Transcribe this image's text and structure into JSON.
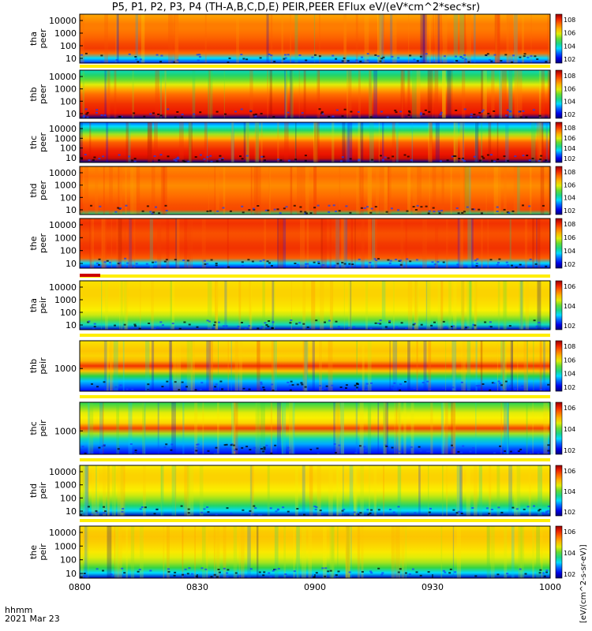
{
  "title": "P5, P1, P2, P3, P4 (TH-A,B,C,D,E) PEIR,PEER EFlux eV/(eV*cm^2*sec*sr)",
  "footer": {
    "label": "hhmm",
    "date": "2021 Mar 23"
  },
  "colorbar_unit": "[eV/(cm^2-s-sr-eV)]",
  "colors": {
    "low": "#000080",
    "mid": "#22cc44",
    "high": "#ffee00",
    "max": "#cc0000"
  },
  "chart_data": [
    {
      "type": "heatmap",
      "probe": "tha",
      "species": "peer",
      "ylabel": [
        "tha",
        "peer"
      ],
      "yticks": [
        "10000",
        "1000",
        "100",
        "10"
      ],
      "colorbar_ticks": [
        "10^8",
        "10^6",
        "10^4",
        "10^2"
      ],
      "profile": [
        0.15,
        0.3,
        0.8,
        0.87,
        0.85,
        0.82,
        0.8,
        0.78,
        0.78,
        0.75,
        0.72
      ]
    },
    {
      "type": "heatmap",
      "probe": "thb",
      "species": "peer",
      "ylabel": [
        "thb",
        "peer"
      ],
      "yticks": [
        "10000",
        "1000",
        "100",
        "10"
      ],
      "colorbar_ticks": [
        "10^8",
        "10^6",
        "10^4",
        "10^2"
      ],
      "profile": [
        0.02,
        0.92,
        0.9,
        0.88,
        0.84,
        0.8,
        0.72,
        0.6,
        0.5,
        0.42,
        0.35
      ]
    },
    {
      "type": "heatmap",
      "probe": "thc",
      "species": "peer",
      "ylabel": [
        "thc",
        "peer"
      ],
      "yticks": [
        "10000",
        "1000",
        "100",
        "10"
      ],
      "colorbar_ticks": [
        "10^8",
        "10^6",
        "10^4",
        "10^2"
      ],
      "profile": [
        0.02,
        0.95,
        0.92,
        0.9,
        0.86,
        0.82,
        0.7,
        0.55,
        0.42,
        0.3,
        0.2
      ]
    },
    {
      "type": "heatmap",
      "probe": "thd",
      "species": "peer",
      "ylabel": [
        "thd",
        "peer"
      ],
      "yticks": [
        "10000",
        "1000",
        "100",
        "10"
      ],
      "colorbar_ticks": [
        "10^8",
        "10^6",
        "10^4",
        "10^2"
      ],
      "profile": [
        0.4,
        0.85,
        0.84,
        0.82,
        0.8,
        0.78,
        0.76,
        0.78,
        0.8,
        0.78,
        0.76
      ]
    },
    {
      "type": "heatmap",
      "probe": "the",
      "species": "peer",
      "ylabel": [
        "the",
        "peer"
      ],
      "yticks": [
        "10000",
        "1000",
        "100",
        "10"
      ],
      "colorbar_ticks": [
        "10^8",
        "10^6",
        "10^4",
        "10^2"
      ],
      "profile": [
        0.1,
        0.3,
        0.82,
        0.86,
        0.88,
        0.87,
        0.85,
        0.84,
        0.86,
        0.88,
        0.86
      ]
    },
    {
      "type": "heatmap",
      "probe": "tha",
      "species": "peir",
      "ylabel": [
        "tha",
        "peir"
      ],
      "yticks": [
        "10000",
        "1000",
        "100",
        "10"
      ],
      "colorbar_ticks": [
        "10^6",
        "10^4",
        "10^2"
      ],
      "profile": [
        0.08,
        0.35,
        0.5,
        0.58,
        0.62,
        0.64,
        0.65,
        0.66,
        0.66,
        0.65,
        0.64
      ]
    },
    {
      "type": "heatmap",
      "probe": "thb",
      "species": "peir",
      "ylabel": [
        "thb",
        "peir"
      ],
      "yticks": [
        "1000"
      ],
      "colorbar_ticks": [
        "10^8",
        "10^6",
        "10^4",
        "10^2"
      ],
      "profile": [
        0.12,
        0.2,
        0.28,
        0.45,
        0.68,
        0.88,
        0.7,
        0.66,
        0.68,
        0.66,
        0.64
      ]
    },
    {
      "type": "heatmap",
      "probe": "thc",
      "species": "peir",
      "ylabel": [
        "thc",
        "peir"
      ],
      "yticks": [
        "1000"
      ],
      "colorbar_ticks": [
        "10^6",
        "10^4",
        "10^2"
      ],
      "profile": [
        0.12,
        0.18,
        0.26,
        0.36,
        0.55,
        0.86,
        0.66,
        0.62,
        0.6,
        0.52,
        0.44
      ]
    },
    {
      "type": "heatmap",
      "probe": "thd",
      "species": "peir",
      "ylabel": [
        "thd",
        "peir"
      ],
      "yticks": [
        "10000",
        "1000",
        "100",
        "10"
      ],
      "colorbar_ticks": [
        "10^6",
        "10^4",
        "10^2"
      ],
      "profile": [
        0.05,
        0.3,
        0.42,
        0.52,
        0.58,
        0.62,
        0.64,
        0.66,
        0.66,
        0.65,
        0.62
      ]
    },
    {
      "type": "heatmap",
      "probe": "the",
      "species": "peir",
      "ylabel": [
        "the",
        "peir"
      ],
      "yticks": [
        "10000",
        "1000",
        "100",
        "10"
      ],
      "colorbar_ticks": [
        "10^6",
        "10^4",
        "10^2"
      ],
      "profile": [
        0.06,
        0.3,
        0.46,
        0.55,
        0.6,
        0.63,
        0.65,
        0.67,
        0.68,
        0.67,
        0.64
      ]
    }
  ],
  "x_axis": {
    "ticks": [
      "0800",
      "0830",
      "0900",
      "0930",
      "1000"
    ],
    "range": [
      "0800",
      "1000"
    ]
  }
}
